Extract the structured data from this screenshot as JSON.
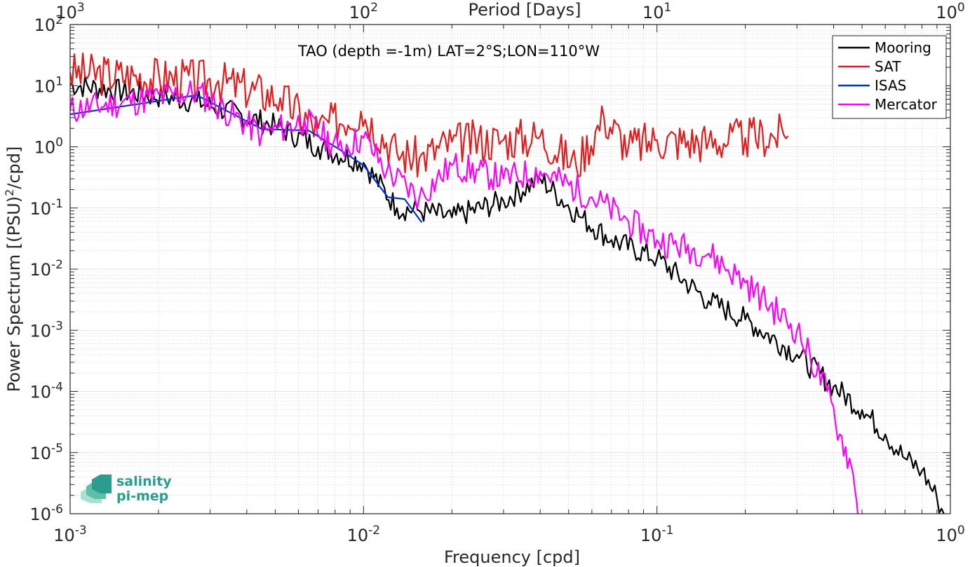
{
  "chart_data": {
    "type": "line",
    "title": "TAO (depth =-1m) LAT=2°S;LON=110°W",
    "xlabel": "Frequency [cpd]",
    "ylabel": "Power Spectrum [(PSU)²/cpd]",
    "top_xlabel": "Period [Days]",
    "x_scale": "log",
    "y_scale": "log",
    "xlim": [
      0.001,
      1
    ],
    "ylim": [
      1e-06,
      100
    ],
    "x_ticks": [
      0.001,
      0.01,
      0.1,
      1
    ],
    "x_tick_mantissa": "10",
    "x_tick_exponents": [
      "-3",
      "-2",
      "-1",
      "0"
    ],
    "y_ticks": [
      1e-06,
      1e-05,
      0.0001,
      0.001,
      0.01,
      0.1,
      1,
      10,
      100
    ],
    "y_tick_mantissa": "10",
    "y_tick_exponents": [
      "-6",
      "-5",
      "-4",
      "-3",
      "-2",
      "-1",
      "0",
      "1",
      "2"
    ],
    "top_ticks": [
      1000,
      100,
      10,
      1
    ],
    "top_tick_exponents": [
      "3",
      "2",
      "1",
      "0"
    ],
    "grid": true,
    "legend_position": "top-right",
    "series": [
      {
        "name": "Mooring",
        "color": "#000000",
        "noise": 0.2,
        "seed": 7,
        "anchors": [
          [
            0.001,
            10.5
          ],
          [
            0.0027,
            5.5
          ],
          [
            0.005,
            2.2
          ],
          [
            0.007,
            1.0
          ],
          [
            0.01,
            0.55
          ],
          [
            0.013,
            0.1
          ],
          [
            0.0155,
            0.09
          ],
          [
            0.02,
            0.07
          ],
          [
            0.03,
            0.13
          ],
          [
            0.04,
            0.3
          ],
          [
            0.055,
            0.07
          ],
          [
            0.07,
            0.03
          ],
          [
            0.1,
            0.015
          ],
          [
            0.15,
            0.003
          ],
          [
            0.2,
            0.0015
          ],
          [
            0.3,
            0.0004
          ],
          [
            0.4,
            0.00012
          ],
          [
            0.5,
            5e-05
          ],
          [
            0.6,
            2e-05
          ],
          [
            0.7,
            8e-06
          ],
          [
            0.8,
            5e-06
          ],
          [
            0.9,
            1.8e-06
          ],
          [
            0.95,
            1e-06
          ]
        ]
      },
      {
        "name": "SAT",
        "color": "#e41a1c",
        "noise": 0.35,
        "seed": 3,
        "anchors": [
          [
            0.001,
            16.5
          ],
          [
            0.0032,
            12.0
          ],
          [
            0.0052,
            6.3
          ],
          [
            0.007,
            2.0
          ],
          [
            0.0098,
            3.8
          ],
          [
            0.013,
            0.8
          ],
          [
            0.0155,
            0.65
          ],
          [
            0.02,
            1.2
          ],
          [
            0.03,
            1.3
          ],
          [
            0.04,
            1.5
          ],
          [
            0.053,
            0.5
          ],
          [
            0.066,
            3.0
          ],
          [
            0.08,
            1.0
          ],
          [
            0.1,
            1.3
          ],
          [
            0.15,
            1.2
          ],
          [
            0.2,
            1.4
          ],
          [
            0.27,
            1.6
          ],
          [
            0.28,
            1.5
          ]
        ]
      },
      {
        "name": "ISAS",
        "color": "#0033cc",
        "noise": 0.0,
        "seed": 1,
        "anchors": [
          [
            0.001,
            3.4
          ],
          [
            0.0027,
            7.0
          ],
          [
            0.0045,
            1.95
          ],
          [
            0.0065,
            1.85
          ],
          [
            0.0083,
            0.9
          ],
          [
            0.01,
            0.5
          ],
          [
            0.0121,
            0.15
          ],
          [
            0.0138,
            0.14
          ],
          [
            0.0158,
            0.058
          ]
        ]
      },
      {
        "name": "Mercator",
        "color": "#ff00ff",
        "noise": 0.25,
        "seed": 11,
        "anchors": [
          [
            0.001,
            4.0
          ],
          [
            0.0027,
            7.9
          ],
          [
            0.0045,
            1.6
          ],
          [
            0.0063,
            2.7
          ],
          [
            0.0082,
            0.95
          ],
          [
            0.01,
            1.4
          ],
          [
            0.012,
            0.4
          ],
          [
            0.0155,
            0.15
          ],
          [
            0.02,
            0.5
          ],
          [
            0.03,
            0.3
          ],
          [
            0.04,
            0.4
          ],
          [
            0.06,
            0.15
          ],
          [
            0.08,
            0.06
          ],
          [
            0.1,
            0.03
          ],
          [
            0.15,
            0.018
          ],
          [
            0.2,
            0.006
          ],
          [
            0.3,
            0.001
          ],
          [
            0.38,
            0.0001
          ],
          [
            0.42,
            2e-05
          ],
          [
            0.46,
            6e-06
          ],
          [
            0.48,
            1.5e-06
          ],
          [
            0.49,
            1e-06
          ]
        ]
      }
    ]
  },
  "logo": {
    "line1": "salinity",
    "line2": "pi-mep",
    "color": "#2a9d8f"
  }
}
